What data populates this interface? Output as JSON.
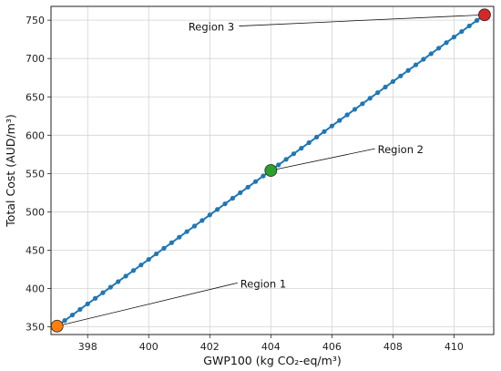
{
  "chart_data": {
    "type": "line",
    "xlabel": "GWP100 (kg CO₂-eq/m³)",
    "ylabel": "Total Cost (AUD/m³)",
    "xlim": [
      396.8,
      411.3
    ],
    "ylim": [
      340,
      768
    ],
    "xticks": [
      398,
      400,
      402,
      404,
      406,
      408,
      410
    ],
    "yticks": [
      350,
      400,
      450,
      500,
      550,
      600,
      650,
      700,
      750
    ],
    "grid": true,
    "series": [
      {
        "color": "#1f77b4",
        "marker": "circle",
        "x_start": 397.0,
        "x_end": 411.0,
        "y_start": 351,
        "y_end": 757,
        "n_points": 57
      }
    ],
    "highlights": [
      {
        "label": "Region 1",
        "x": 397.0,
        "y": 351,
        "color": "#ff7f0e",
        "text_x": 403.0,
        "text_y": 405
      },
      {
        "label": "Region 2",
        "x": 404.0,
        "y": 554,
        "color": "#2ca02c",
        "text_x": 407.5,
        "text_y": 580
      },
      {
        "label": "Region 3",
        "x": 411.0,
        "y": 757,
        "color": "#d62728",
        "text_x": 401.3,
        "text_y": 740
      }
    ]
  }
}
